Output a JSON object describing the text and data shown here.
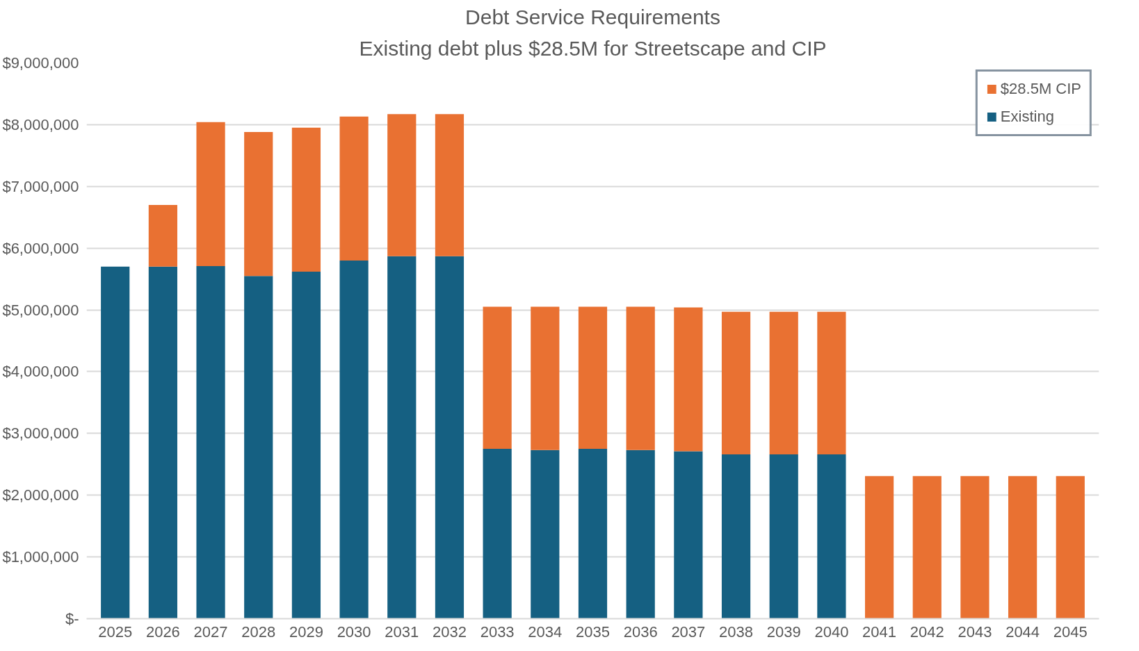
{
  "chart_data": {
    "type": "bar",
    "stacked": true,
    "title": "Debt Service Requirements",
    "subtitle": "Existing debt plus $28.5M for Streetscape and CIP",
    "categories": [
      "2025",
      "2026",
      "2027",
      "2028",
      "2029",
      "2030",
      "2031",
      "2032",
      "2033",
      "2034",
      "2035",
      "2036",
      "2037",
      "2038",
      "2039",
      "2040",
      "2041",
      "2042",
      "2043",
      "2044",
      "2045"
    ],
    "series": [
      {
        "name": "Existing",
        "color": "#156082",
        "values": [
          5700000,
          5700000,
          5710000,
          5550000,
          5620000,
          5800000,
          5870000,
          5870000,
          2750000,
          2730000,
          2750000,
          2730000,
          2710000,
          2660000,
          2660000,
          2660000,
          0,
          0,
          0,
          0,
          0
        ]
      },
      {
        "name": "$28.5M CIP",
        "color": "#e97132",
        "values": [
          0,
          1000000,
          2330000,
          2330000,
          2330000,
          2330000,
          2300000,
          2300000,
          2300000,
          2320000,
          2300000,
          2320000,
          2330000,
          2310000,
          2310000,
          2310000,
          2310000,
          2310000,
          2310000,
          2310000,
          2310000
        ]
      }
    ],
    "ylim": [
      0,
      9000000
    ],
    "yticks": [
      {
        "value": 0,
        "label": "$-"
      },
      {
        "value": 1000000,
        "label": "$1,000,000"
      },
      {
        "value": 2000000,
        "label": "$2,000,000"
      },
      {
        "value": 3000000,
        "label": "$3,000,000"
      },
      {
        "value": 4000000,
        "label": "$4,000,000"
      },
      {
        "value": 5000000,
        "label": "$5,000,000"
      },
      {
        "value": 6000000,
        "label": "$6,000,000"
      },
      {
        "value": 7000000,
        "label": "$7,000,000"
      },
      {
        "value": 8000000,
        "label": "$8,000,000"
      },
      {
        "value": 9000000,
        "label": "$9,000,000"
      }
    ],
    "grid": "y",
    "legend": "top right"
  }
}
